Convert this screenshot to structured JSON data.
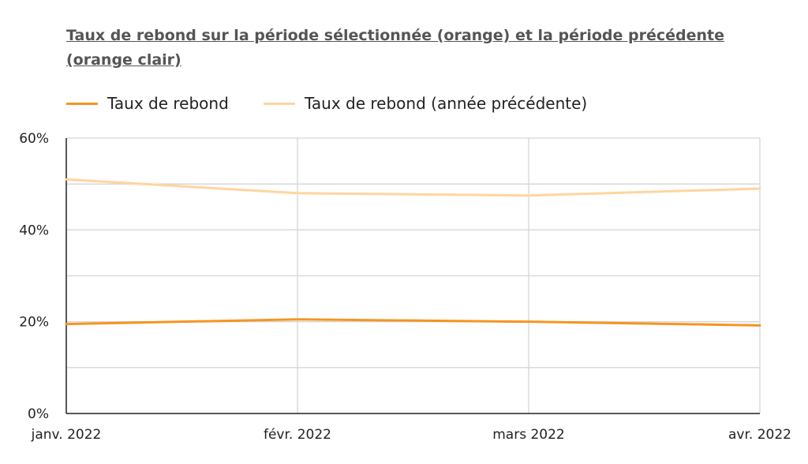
{
  "chart_data": {
    "type": "line",
    "title": "Taux de rebond  sur la période sélectionnée (orange) et la période précédente (orange clair)",
    "categories": [
      "janv. 2022",
      "févr. 2022",
      "mars 2022",
      "avr. 2022"
    ],
    "series": [
      {
        "name": "Taux de rebond",
        "values": [
          19.5,
          20.5,
          20.0,
          19.2
        ],
        "color": "#f5951f"
      },
      {
        "name": "Taux de rebond (année précédente)",
        "values": [
          51.0,
          48.0,
          47.5,
          49.0
        ],
        "color": "#ffd59e"
      }
    ],
    "yticks": [
      "0%",
      "20%",
      "40%",
      "60%"
    ],
    "ylim": [
      0,
      60
    ],
    "grid": true,
    "legend": "top-left"
  }
}
